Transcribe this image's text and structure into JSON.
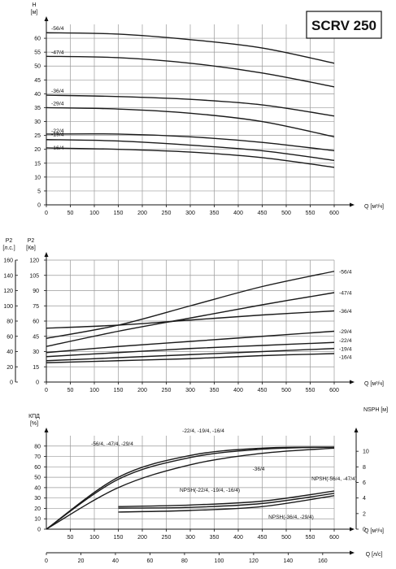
{
  "title": "SCRV 250",
  "chart_data": [
    {
      "type": "line",
      "name": "head",
      "ylabel": "H",
      "yunit": "[м]",
      "xlabel": "Q [м³/ч]",
      "xlim": [
        0,
        600
      ],
      "ylim": [
        0,
        65
      ],
      "xticks": [
        0,
        50,
        100,
        150,
        200,
        250,
        300,
        350,
        400,
        450,
        500,
        550,
        600
      ],
      "yticks": [
        0,
        5,
        10,
        15,
        20,
        25,
        30,
        35,
        40,
        45,
        50,
        55,
        60
      ],
      "grid": true,
      "series": [
        {
          "name": "-56/4",
          "x": [
            0,
            150,
            300,
            450,
            600
          ],
          "y": [
            62,
            61.5,
            59.5,
            56.5,
            51
          ]
        },
        {
          "name": "-47/4",
          "x": [
            0,
            150,
            300,
            450,
            600
          ],
          "y": [
            53.5,
            53,
            51,
            47.5,
            42.5
          ]
        },
        {
          "name": "-36/4",
          "x": [
            0,
            150,
            300,
            450,
            600
          ],
          "y": [
            39.5,
            39,
            38,
            36,
            32
          ]
        },
        {
          "name": "-29/4",
          "x": [
            0,
            150,
            300,
            450,
            600
          ],
          "y": [
            35,
            34.5,
            33,
            30,
            24.5
          ]
        },
        {
          "name": "-22/4",
          "x": [
            0,
            150,
            300,
            450,
            600
          ],
          "y": [
            25.5,
            25.5,
            24.5,
            22.5,
            19.5
          ]
        },
        {
          "name": "-19/4",
          "x": [
            0,
            150,
            300,
            450,
            600
          ],
          "y": [
            23.5,
            23,
            21.5,
            19.5,
            16
          ]
        },
        {
          "name": "-16/4",
          "x": [
            0,
            150,
            300,
            450,
            600
          ],
          "y": [
            20.5,
            20,
            19,
            17,
            13.5
          ]
        }
      ]
    },
    {
      "type": "line",
      "name": "power",
      "ylabel": "P2",
      "yunit": "[Кв]",
      "ylabel2": "P2",
      "yunit2": "[л.с.]",
      "xlabel": "Q [м³/ч]",
      "xlim": [
        0,
        600
      ],
      "ylim": [
        0,
        120
      ],
      "xticks": [
        0,
        50,
        100,
        150,
        200,
        250,
        300,
        350,
        400,
        450,
        500,
        550,
        600
      ],
      "yticks": [
        0,
        15,
        30,
        45,
        60,
        75,
        90,
        105,
        120
      ],
      "yticks2": [
        0,
        20,
        40,
        60,
        80,
        100,
        120,
        140,
        160
      ],
      "grid": true,
      "series": [
        {
          "name": "-56/4",
          "x": [
            0,
            150,
            300,
            450,
            600
          ],
          "y": [
            43,
            56,
            75,
            94,
            109
          ]
        },
        {
          "name": "-47/4",
          "x": [
            0,
            150,
            300,
            450,
            600
          ],
          "y": [
            35,
            50,
            63,
            76,
            88
          ]
        },
        {
          "name": "-36/4",
          "x": [
            0,
            150,
            300,
            450,
            600
          ],
          "y": [
            53,
            56,
            61,
            66,
            70
          ]
        },
        {
          "name": "-29/4",
          "x": [
            0,
            150,
            300,
            450,
            600
          ],
          "y": [
            29,
            35,
            40,
            45,
            50
          ]
        },
        {
          "name": "-22/4",
          "x": [
            0,
            150,
            300,
            450,
            600
          ],
          "y": [
            25,
            29,
            33,
            36,
            39
          ]
        },
        {
          "name": "-19/4",
          "x": [
            0,
            150,
            300,
            450,
            600
          ],
          "y": [
            21,
            24,
            27,
            30,
            33
          ]
        },
        {
          "name": "-16/4",
          "x": [
            0,
            150,
            300,
            450,
            600
          ],
          "y": [
            19,
            21,
            23,
            26,
            28
          ]
        }
      ]
    },
    {
      "type": "line",
      "name": "efficiency-npsh",
      "ylabel": "КПД",
      "yunit": "[%]",
      "ylabel2": "NSPH [м]",
      "xlabel": "Q [м³/ч]",
      "xlabel2": "Q [л/с]",
      "xlim": [
        0,
        600
      ],
      "ylim": [
        0,
        90
      ],
      "ylim2": [
        0,
        12
      ],
      "xticks": [
        50,
        100,
        150,
        200,
        250,
        300,
        350,
        400,
        450,
        500,
        550,
        600
      ],
      "xticks2": [
        0,
        20,
        40,
        60,
        80,
        100,
        120,
        140,
        160
      ],
      "yticks": [
        0,
        10,
        20,
        30,
        40,
        50,
        60,
        70,
        80
      ],
      "yticks2": [
        0,
        2,
        4,
        6,
        8,
        10
      ],
      "grid": true,
      "series": [
        {
          "name": "-56/4, -47/4, -29/4",
          "x": [
            0,
            150,
            300,
            450,
            600
          ],
          "y": [
            0,
            50,
            71,
            78,
            79
          ]
        },
        {
          "name": "-22/4, -19/4, -16/4",
          "x": [
            0,
            150,
            300,
            450,
            600
          ],
          "y": [
            0,
            48,
            69,
            77,
            79
          ]
        },
        {
          "name": "-36/4",
          "x": [
            0,
            150,
            300,
            450,
            600
          ],
          "y": [
            0,
            40,
            62,
            73,
            78
          ]
        },
        {
          "name": "NPSH(-22/4, -19/4, -16/4)",
          "axis": "right",
          "x": [
            150,
            300,
            450,
            600
          ],
          "y": [
            2.9,
            3.1,
            3.6,
            4.9
          ]
        },
        {
          "name": "NPSH(-56/4, -47/4)",
          "axis": "right",
          "x": [
            150,
            300,
            450,
            600
          ],
          "y": [
            2.7,
            2.8,
            3.3,
            4.6
          ]
        },
        {
          "name": "NPSH(-36/4, -29/4)",
          "axis": "right",
          "x": [
            150,
            300,
            450,
            600
          ],
          "y": [
            2.2,
            2.4,
            2.9,
            4.3
          ]
        }
      ],
      "annotations": [
        "-22/4, -19/4, -16/4",
        "-56/4, -47/4, -29/4",
        "-36/4",
        "NPSH(-22/4, -19/4, -16/4)",
        "NPSH(-56/4, -47/4)",
        "NPSH(-36/4, -29/4)"
      ]
    }
  ]
}
